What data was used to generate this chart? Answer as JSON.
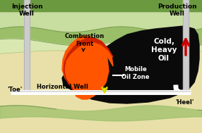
{
  "bg_sandy": "#e8e0a8",
  "bg_top_dark_green": "#6b9940",
  "bg_mid_light_green": "#c8dda0",
  "bg_mid_green_band": "#9abf68",
  "bg_lower_light": "#d8e8b0",
  "black_color": "#0a0a0a",
  "combustion_red": "#cc2200",
  "combustion_orange": "#ff5500",
  "combustion_light": "#ff8800",
  "well_gray": "#cccccc",
  "well_dark": "#aaaaaa",
  "white": "#ffffff",
  "arrow_red": "#cc0000",
  "arrow_yellow": "#dddd00",
  "text_inj": "Injection\nWell",
  "text_prod": "Production\nWell",
  "text_comb": "Combustion\nFront",
  "text_mobile": "Mobile\nOil Zone",
  "text_cold": "Cold,\nHeavy\nOil",
  "text_horiz": "Horizontal Well",
  "text_toe": "'Toe'",
  "text_heel": "'Heel'",
  "figsize": [
    2.86,
    1.89
  ],
  "dpi": 100
}
